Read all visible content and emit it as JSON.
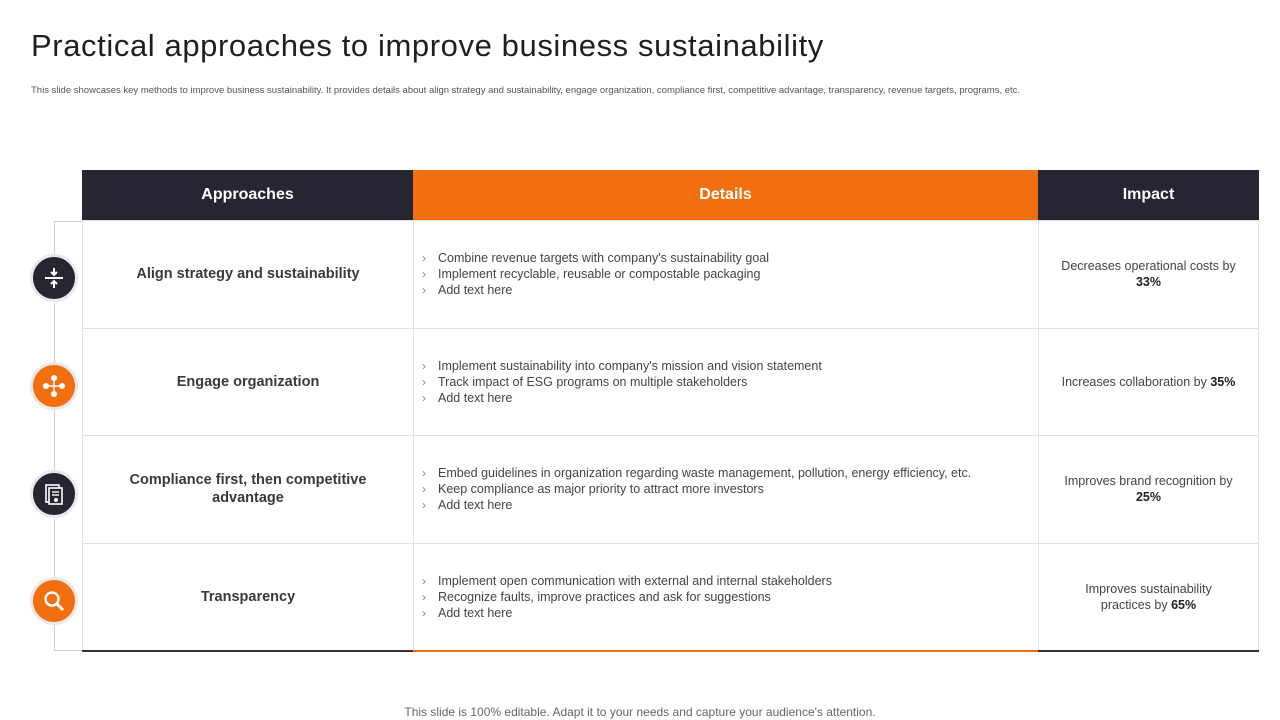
{
  "title": "Practical approaches to improve business sustainability",
  "subtitle": "This slide showcases key methods to improve business sustainability. It provides details about align strategy and sustainability, engage organization, compliance first, competitive advantage, transparency, revenue targets, programs, etc.",
  "headers": {
    "approaches": "Approaches",
    "details": "Details",
    "impact": "Impact"
  },
  "rows": [
    {
      "icon": "split-arrows-icon",
      "approach": "Align strategy and sustainability",
      "details": [
        "Combine revenue targets with company's sustainability goal",
        "Implement recyclable, reusable or compostable packaging",
        "Add text here"
      ],
      "impact_text": "Decreases operational costs by",
      "impact_value": "33%"
    },
    {
      "icon": "organization-network-icon",
      "approach": "Engage organization",
      "details": [
        "Implement sustainability into company's mission and vision statement",
        "Track impact of ESG programs on multiple stakeholders",
        "Add text here"
      ],
      "impact_text": "Increases collaboration by",
      "impact_value": "35%"
    },
    {
      "icon": "certificate-documents-icon",
      "approach": "Compliance first, then competitive advantage",
      "details": [
        "Embed guidelines in organization regarding waste management, pollution, energy efficiency, etc.",
        "Keep compliance as major priority to attract more investors",
        "Add text here"
      ],
      "impact_text": "Improves brand recognition by",
      "impact_value": "25%"
    },
    {
      "icon": "magnifier-icon",
      "approach": "Transparency",
      "details": [
        "Implement open communication with external and internal stakeholders",
        "Recognize faults, improve practices and ask for suggestions",
        "Add text here"
      ],
      "impact_text": "Improves sustainability practices by",
      "impact_value": "65%"
    }
  ],
  "colors": {
    "dark": "#252631",
    "accent": "#f26f10"
  },
  "footer": "This slide is 100% editable. Adapt it to your needs and capture your audience's attention."
}
